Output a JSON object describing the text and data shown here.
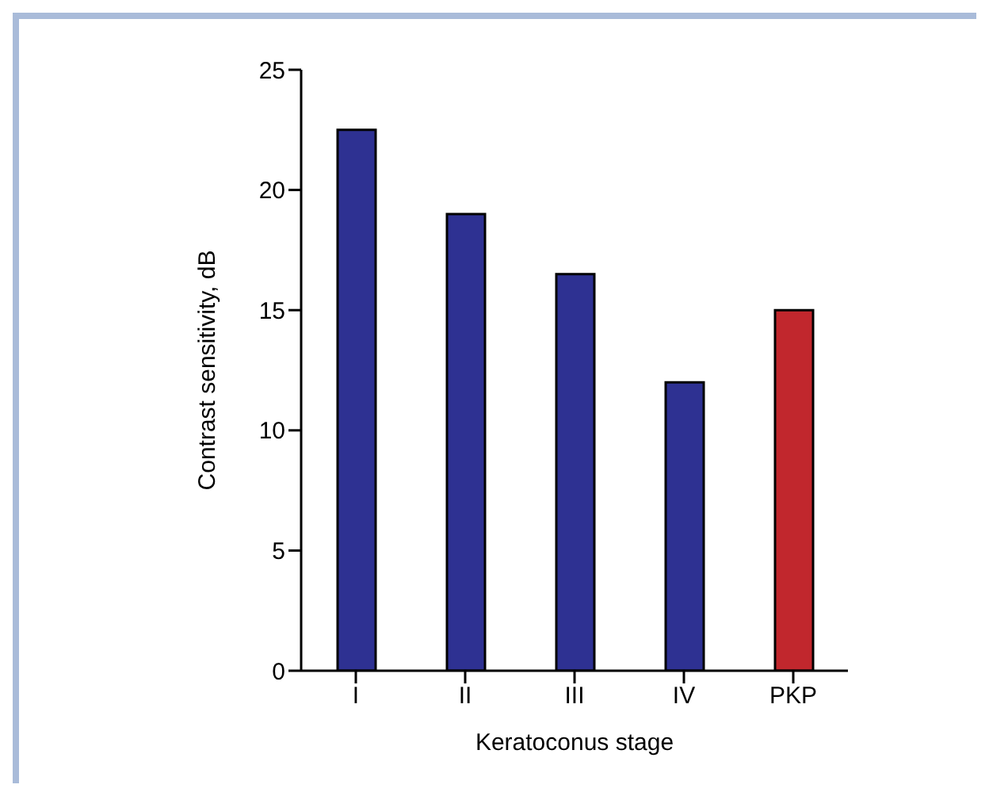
{
  "chart_data": {
    "type": "bar",
    "xlabel": "Keratoconus stage",
    "ylabel": "Contrast sensitivity, dB",
    "categories": [
      "I",
      "II",
      "III",
      "IV",
      "PKP"
    ],
    "values": [
      22.5,
      19,
      16.5,
      12,
      15
    ],
    "colors": [
      "#2e3192",
      "#2e3192",
      "#2e3192",
      "#2e3192",
      "#c1272d"
    ],
    "ylim": [
      0,
      25
    ],
    "yticks": [
      0,
      5,
      10,
      15,
      20,
      25
    ],
    "grid": false,
    "legend": false
  }
}
